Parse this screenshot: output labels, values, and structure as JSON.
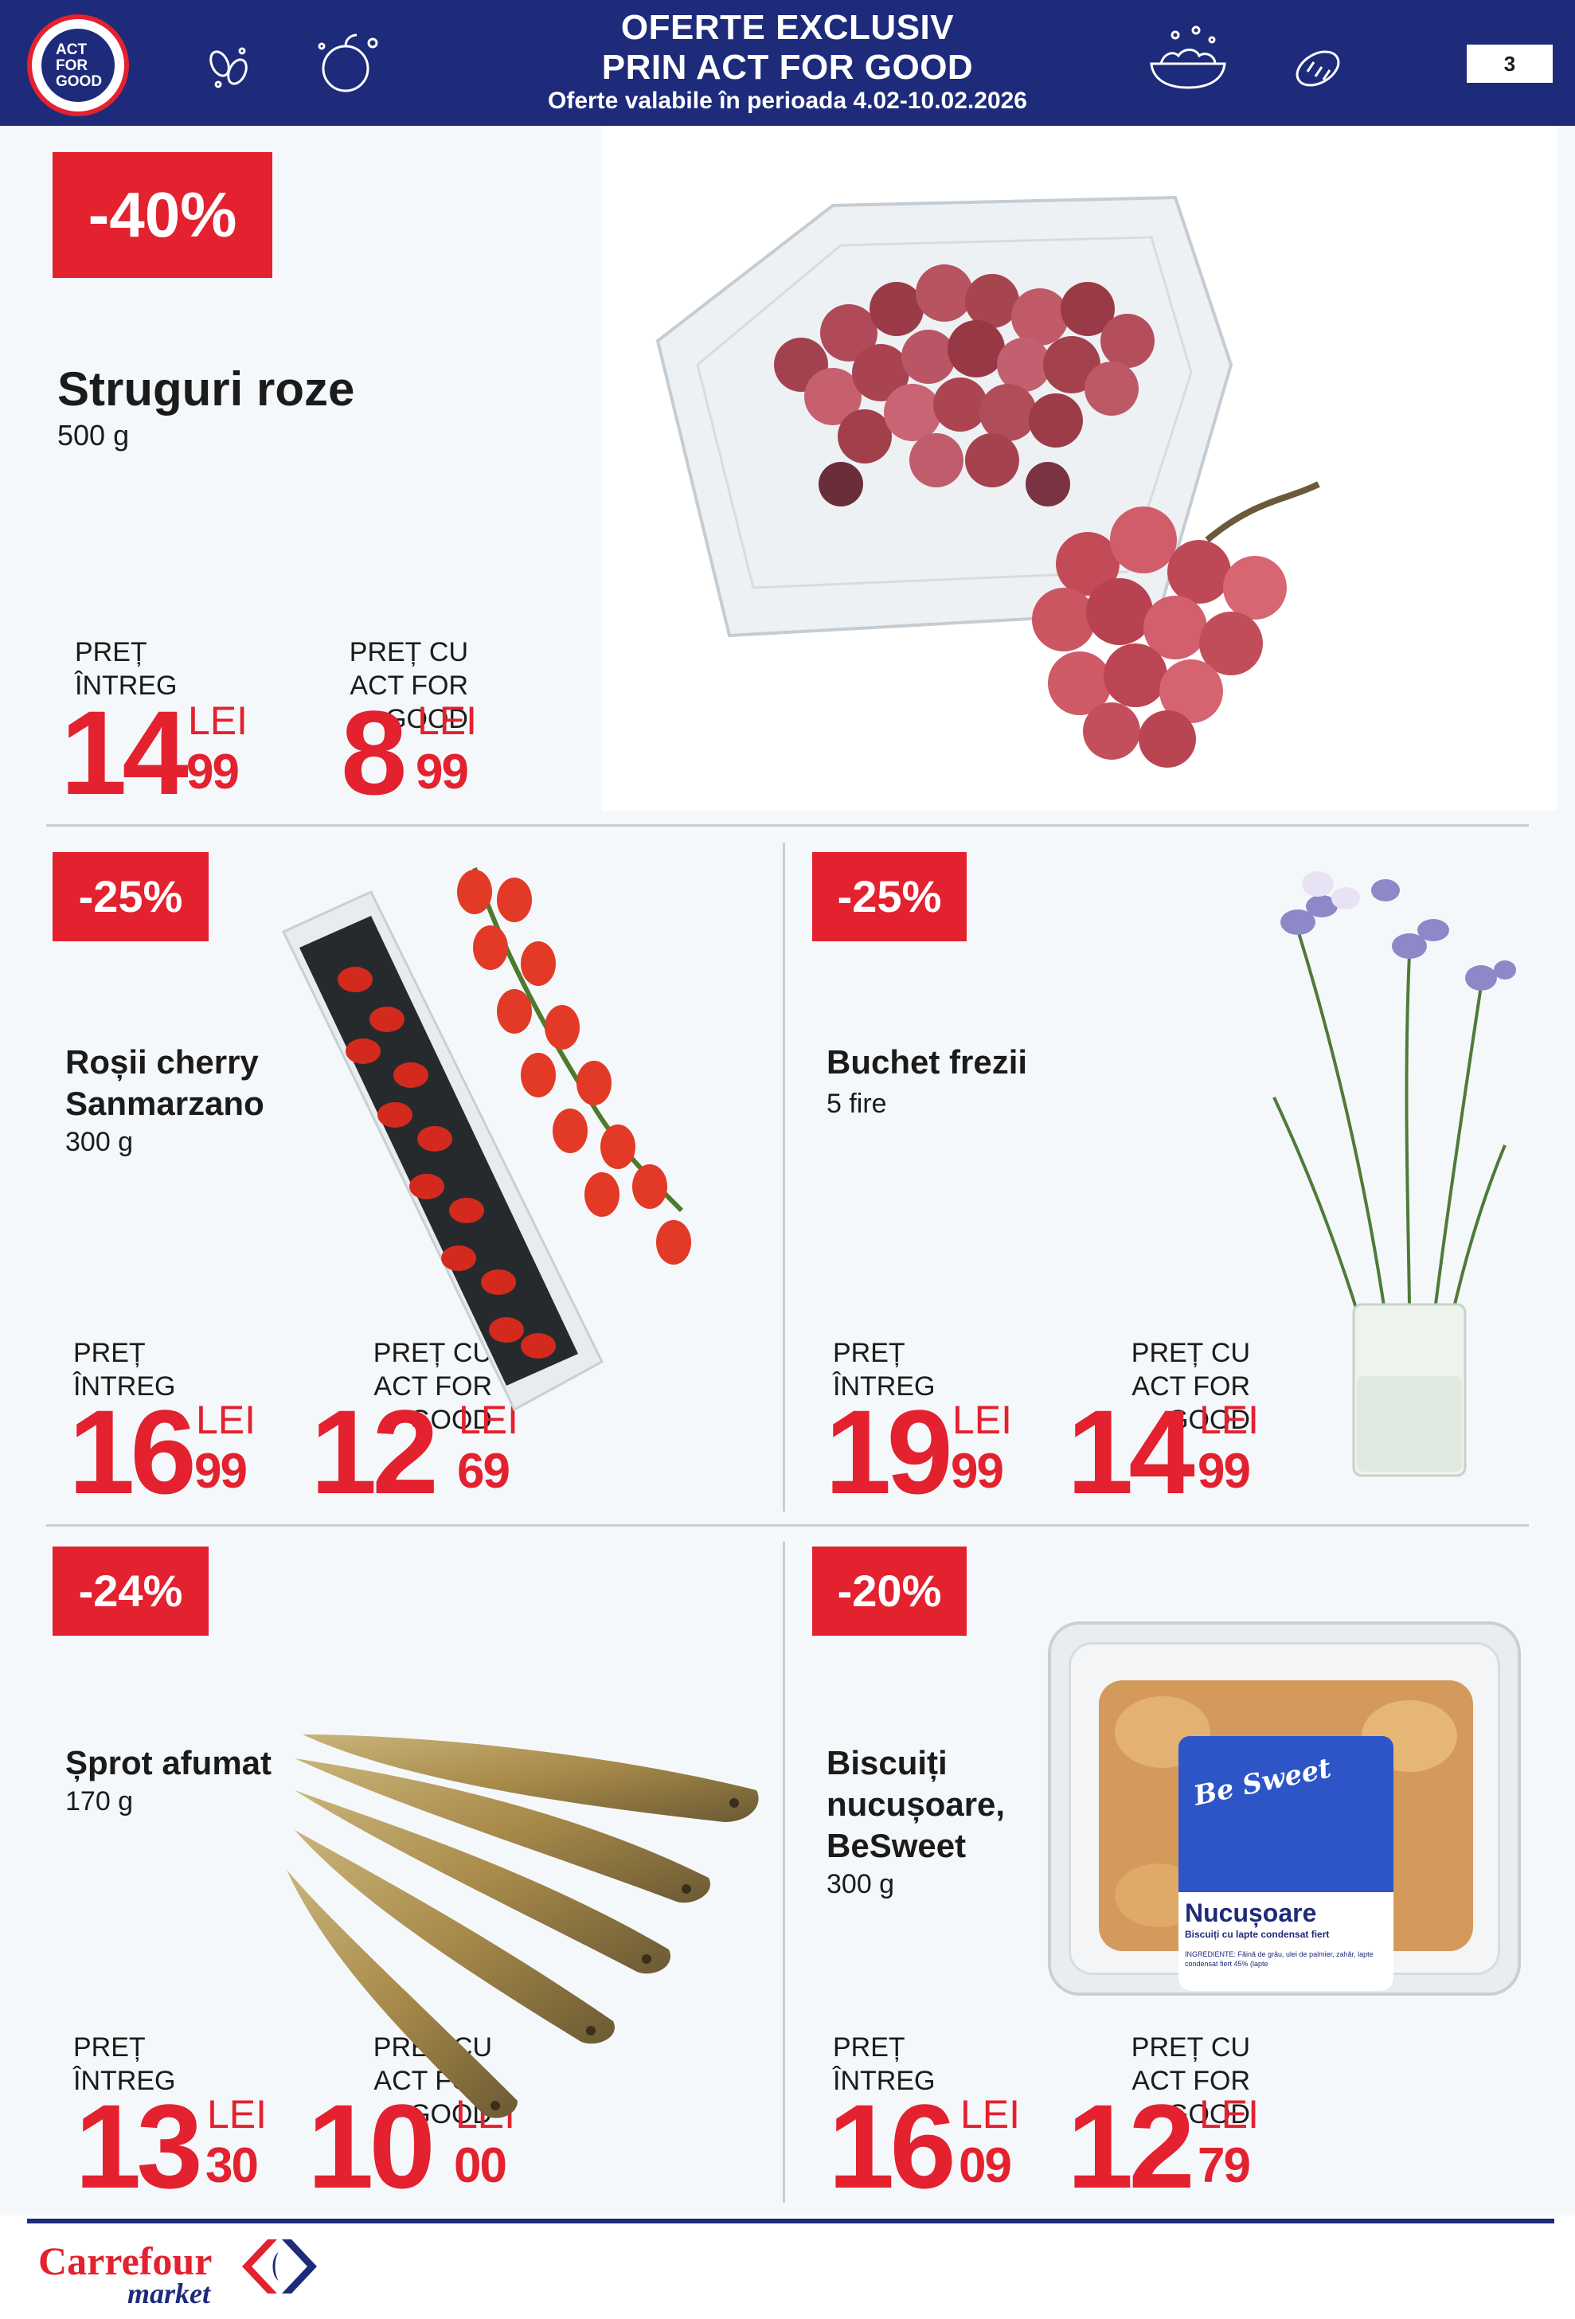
{
  "header": {
    "logo_lines": [
      "ACT",
      "FOR",
      "GOOD"
    ],
    "title_line1": "OFERTE EXCLUSIV",
    "title_line2": "PRIN ACT FOR GOOD",
    "validity": "Oferte valabile în perioada 4.02-10.02.2026",
    "page_number": "3",
    "icons": [
      "seeds-icon",
      "fruit-icon",
      "salad-bowl-icon",
      "bread-icon"
    ]
  },
  "labels": {
    "full_price_line1": "PREȚ",
    "full_price_line2": "ÎNTREG",
    "act_price_line1": "PREȚ CU",
    "act_price_line2": "ACT FOR GOOD",
    "currency": "LEI"
  },
  "products": [
    {
      "discount": "-40%",
      "name_lines": [
        "Struguri roze"
      ],
      "weight": "500 g",
      "full_int": "14",
      "full_dec": "99",
      "act_int": "8",
      "act_dec": "99",
      "image": "grapes-image"
    },
    {
      "discount": "-25%",
      "name_lines": [
        "Roșii cherry",
        "Sanmarzano"
      ],
      "weight": "300 g",
      "full_int": "16",
      "full_dec": "99",
      "act_int": "12",
      "act_dec": "69",
      "image": "tomatoes-image"
    },
    {
      "discount": "-25%",
      "name_lines": [
        "Buchet frezii"
      ],
      "weight": "5 fire",
      "full_int": "19",
      "full_dec": "99",
      "act_int": "14",
      "act_dec": "99",
      "image": "freesia-image"
    },
    {
      "discount": "-24%",
      "name_lines": [
        "Șprot afumat"
      ],
      "weight": "170 g",
      "full_int": "13",
      "full_dec": "30",
      "act_int": "10",
      "act_dec": "00",
      "image": "sprats-image"
    },
    {
      "discount": "-20%",
      "name_lines": [
        "Biscuiți",
        "nucușoare,",
        "BeSweet"
      ],
      "weight": "300 g",
      "full_int": "16",
      "full_dec": "09",
      "act_int": "12",
      "act_dec": "79",
      "image": "biscuits-image",
      "package": {
        "brand": "Be Sweet",
        "title": "Nucușoare",
        "subtitle": "Biscuiți cu lapte condensat fiert",
        "ingredients": "INGREDIENTE: Făină de grâu, ulei de palmier, zahăr, lapte condensat fiert 45% (lapte"
      }
    }
  ],
  "footer": {
    "brand": "Carrefour",
    "sub": "market"
  },
  "colors": {
    "header_bg": "#1e2a7a",
    "accent_red": "#e3212f",
    "content_bg": "#f5f8fa"
  }
}
